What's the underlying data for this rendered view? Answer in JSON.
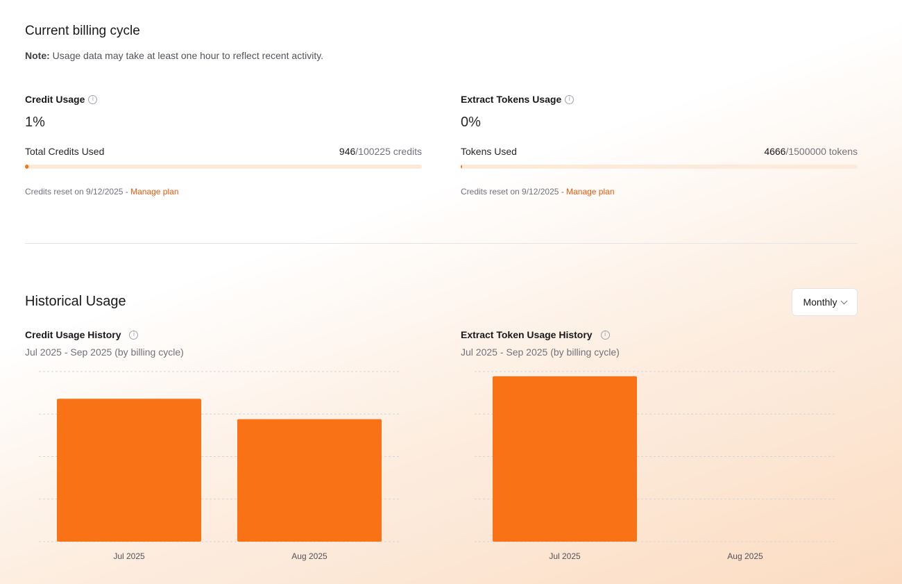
{
  "billing": {
    "title": "Current billing cycle",
    "note_label": "Note:",
    "note_text": "Usage data may take at least one hour to reflect recent activity."
  },
  "credit_usage": {
    "title": "Credit Usage",
    "info_icon": "info-icon",
    "percent": "1%",
    "used_label": "Total Credits Used",
    "used_value": "946",
    "used_rest": "/100225 credits",
    "fraction": 0.0094,
    "reset_text": "Credits reset on 9/12/2025 -",
    "manage_link": "Manage plan"
  },
  "token_usage": {
    "title": "Extract Tokens Usage",
    "info_icon": "info-icon",
    "percent": "0%",
    "used_label": "Tokens Used",
    "used_value": "4666",
    "used_rest": "/1500000 tokens",
    "fraction": 0.0031,
    "reset_text": "Credits reset on 9/12/2025 -",
    "manage_link": "Manage plan"
  },
  "historical": {
    "title": "Historical Usage",
    "period_select": "Monthly",
    "select_icon": "chevron-down-icon"
  },
  "colors": {
    "accent": "#f97316",
    "link": "#ea580c",
    "track": "#feead8"
  },
  "chart_data": [
    {
      "type": "bar",
      "title": "Credit Usage History",
      "subtitle": "Jul 2025 - Sep 2025 (by billing cycle)",
      "categories": [
        "Jul 2025",
        "Aug 2025"
      ],
      "values": [
        840,
        720
      ],
      "ylim": [
        0,
        1000
      ],
      "grid": true,
      "xlabel": "",
      "ylabel": ""
    },
    {
      "type": "bar",
      "title": "Extract Token Usage History",
      "subtitle": "Jul 2025 - Sep 2025 (by billing cycle)",
      "categories": [
        "Jul 2025",
        "Aug 2025"
      ],
      "values": [
        4666,
        0
      ],
      "ylim": [
        0,
        4800
      ],
      "grid": true,
      "xlabel": "",
      "ylabel": ""
    }
  ]
}
